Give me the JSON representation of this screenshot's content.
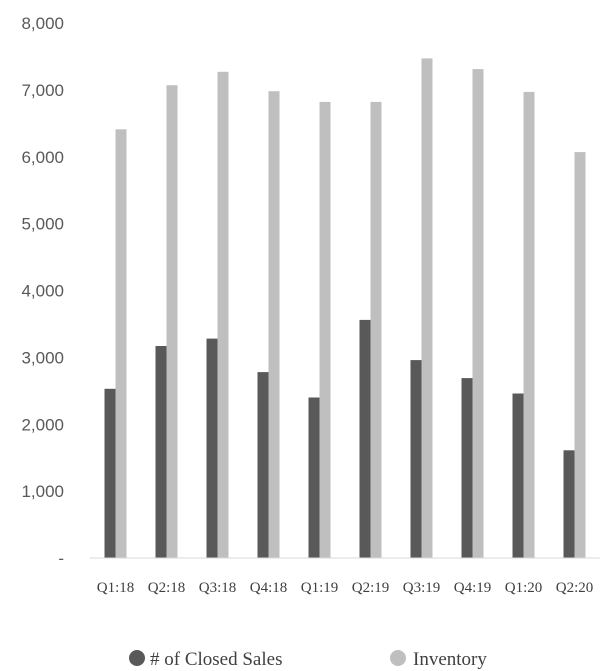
{
  "chart_data": {
    "type": "bar",
    "categories": [
      "Q1:18",
      "Q2:18",
      "Q3:18",
      "Q4:18",
      "Q1:19",
      "Q2:19",
      "Q3:19",
      "Q4:19",
      "Q1:20",
      "Q2:20"
    ],
    "series": [
      {
        "name": "# of Closed Sales",
        "color": "#595959",
        "values": [
          2530,
          3170,
          3280,
          2780,
          2400,
          3560,
          2960,
          2690,
          2460,
          1610
        ]
      },
      {
        "name": "Inventory",
        "color": "#bfbfbf",
        "values": [
          6410,
          7070,
          7270,
          6980,
          6820,
          6820,
          7470,
          7310,
          6970,
          6070
        ]
      }
    ],
    "yticks": [
      "-",
      "1,000",
      "2,000",
      "3,000",
      "4,000",
      "5,000",
      "6,000",
      "7,000",
      "8,000"
    ],
    "ylim": [
      0,
      8000
    ],
    "grid": false,
    "legend_position": "bottom",
    "title": "",
    "xlabel": "",
    "ylabel": ""
  }
}
